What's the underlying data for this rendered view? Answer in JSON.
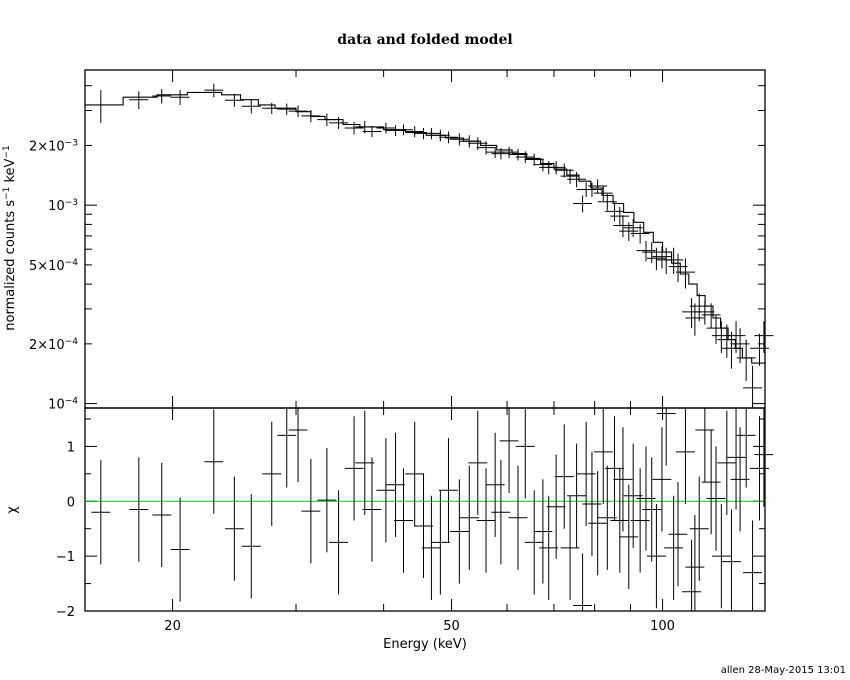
{
  "chart_data": [
    {
      "type": "scatter",
      "panel": "top",
      "title": "data and folded model",
      "xlabel": "",
      "ylabel": "normalized counts s^-1 keV^-1",
      "xscale": "log",
      "yscale": "log",
      "xlim": [
        15,
        140
      ],
      "ylim": [
        9.5e-05,
        0.0048
      ],
      "ytick_labels": [
        {
          "value": 0.0001,
          "mant": "10",
          "exp": "−4"
        },
        {
          "value": 0.0002,
          "mant": "2×10",
          "exp": "−4"
        },
        {
          "value": 0.0005,
          "mant": "5×10",
          "exp": "−4"
        },
        {
          "value": 0.001,
          "mant": "10",
          "exp": "−3"
        },
        {
          "value": 0.002,
          "mant": "2×10",
          "exp": "−3"
        }
      ],
      "ylabel_parts": {
        "text": "normalized counts s",
        "exp1": "−1",
        "mid": " keV",
        "exp2": "−1"
      },
      "series": [
        {
          "name": "",
          "points": [
            [
              15.8,
              0.0032,
              0.0006
            ],
            [
              17.9,
              0.0034,
              0.00035
            ],
            [
              19.3,
              0.00355,
              0.0003
            ],
            [
              20.5,
              0.0035,
              0.0003
            ],
            [
              22.9,
              0.0038,
              0.0003
            ],
            [
              24.5,
              0.00338,
              0.00025
            ],
            [
              25.9,
              0.00315,
              0.00025
            ],
            [
              27.7,
              0.00308,
              0.0002
            ],
            [
              29.1,
              0.00305,
              0.0002
            ],
            [
              30.2,
              0.00298,
              0.0002
            ],
            [
              31.5,
              0.00282,
              0.0002
            ],
            [
              33.2,
              0.0027,
              0.0002
            ],
            [
              34.5,
              0.0026,
              0.00018
            ],
            [
              36.3,
              0.00245,
              0.00018
            ],
            [
              37.6,
              0.00248,
              0.00018
            ],
            [
              38.5,
              0.00235,
              0.00015
            ],
            [
              40.3,
              0.00245,
              0.00015
            ],
            [
              41.6,
              0.00238,
              0.00015
            ],
            [
              42.7,
              0.0024,
              0.00015
            ],
            [
              44.3,
              0.00235,
              0.00015
            ],
            [
              45.6,
              0.0023,
              0.00015
            ],
            [
              46.8,
              0.0023,
              0.00015
            ],
            [
              48.2,
              0.00225,
              0.00015
            ],
            [
              49.5,
              0.0022,
              0.00015
            ],
            [
              51.3,
              0.00215,
              0.00015
            ],
            [
              53.0,
              0.0021,
              0.00015
            ],
            [
              54.5,
              0.00205,
              0.00015
            ],
            [
              56.0,
              0.00195,
              0.00015
            ],
            [
              57.7,
              0.00185,
              0.00012
            ],
            [
              58.8,
              0.00182,
              0.00012
            ],
            [
              60.4,
              0.00185,
              0.00012
            ],
            [
              62.2,
              0.0018,
              0.00012
            ],
            [
              63.7,
              0.00175,
              0.00012
            ],
            [
              65.6,
              0.0017,
              0.00012
            ],
            [
              67.5,
              0.0016,
              0.00012
            ],
            [
              68.8,
              0.00155,
              0.00012
            ],
            [
              70.5,
              0.00155,
              0.00012
            ],
            [
              72.4,
              0.0015,
              0.00012
            ],
            [
              73.8,
              0.0014,
              0.00012
            ],
            [
              75.4,
              0.00135,
              0.00012
            ],
            [
              76.9,
              0.00102,
              0.0001
            ],
            [
              77.8,
              0.0012,
              0.0001
            ],
            [
              79.3,
              0.0012,
              0.0001
            ],
            [
              80.8,
              0.00125,
              0.0001
            ],
            [
              82.3,
              0.00115,
              0.0001
            ],
            [
              83.4,
              0.00104,
              0.0001
            ],
            [
              85.4,
              0.00093,
              0.0001
            ],
            [
              86.9,
              0.00088,
              0.0001
            ],
            [
              87.8,
              0.00079,
              0.0001
            ],
            [
              89.5,
              0.00074,
              8e-05
            ],
            [
              90.8,
              0.00077,
              8e-05
            ],
            [
              92.9,
              0.00072,
              8e-05
            ],
            [
              94.7,
              0.00059,
              7e-05
            ],
            [
              96.5,
              0.00058,
              7e-05
            ],
            [
              98.0,
              0.00054,
              7e-05
            ],
            [
              99.8,
              0.00055,
              7e-05
            ],
            [
              101.2,
              0.00053,
              8e-05
            ],
            [
              103.7,
              0.00053,
              8e-05
            ],
            [
              105.2,
              0.00049,
              8e-05
            ],
            [
              107.8,
              0.00046,
              8e-05
            ],
            [
              110.0,
              0.00029,
              5e-05
            ],
            [
              111.2,
              0.00027,
              5e-05
            ],
            [
              112.8,
              0.00031,
              5e-05
            ],
            [
              114.9,
              0.00029,
              4e-05
            ],
            [
              117.3,
              0.00028,
              4e-05
            ],
            [
              119.2,
              0.00024,
              4e-05
            ],
            [
              121.3,
              0.00022,
              4e-05
            ],
            [
              123.5,
              0.00021,
              4e-05
            ],
            [
              125.4,
              0.00019,
              4e-05
            ],
            [
              127.3,
              0.00022,
              4e-05
            ],
            [
              129.0,
              0.0002,
              4e-05
            ],
            [
              131.6,
              0.00017,
              4e-05
            ],
            [
              134.4,
              0.00012,
              3.5e-05
            ],
            [
              137.5,
              0.00019,
              3.5e-05
            ],
            [
              139.5,
              0.00022,
              4e-05
            ]
          ],
          "bin_halfwidth_log": 0.0135
        }
      ],
      "model": [
        [
          15.0,
          0.0032
        ],
        [
          17.0,
          0.0032
        ],
        [
          17.0,
          0.0035
        ],
        [
          19.0,
          0.0035
        ],
        [
          19.0,
          0.0036
        ],
        [
          21.0,
          0.0036
        ],
        [
          21.0,
          0.0037
        ],
        [
          23.5,
          0.0037
        ],
        [
          23.5,
          0.0036
        ],
        [
          25.0,
          0.0036
        ],
        [
          25.0,
          0.0034
        ],
        [
          26.5,
          0.0034
        ],
        [
          26.5,
          0.0032
        ],
        [
          28.0,
          0.0032
        ],
        [
          28.0,
          0.00308
        ],
        [
          30.0,
          0.00308
        ],
        [
          30.0,
          0.00296
        ],
        [
          31.5,
          0.00296
        ],
        [
          31.5,
          0.0028
        ],
        [
          33.0,
          0.0028
        ],
        [
          33.0,
          0.0027
        ],
        [
          35.0,
          0.0027
        ],
        [
          35.0,
          0.00255
        ],
        [
          37.0,
          0.00255
        ],
        [
          37.0,
          0.00248
        ],
        [
          40.0,
          0.00248
        ],
        [
          40.0,
          0.0024
        ],
        [
          43.0,
          0.0024
        ],
        [
          43.0,
          0.00232
        ],
        [
          46.0,
          0.00232
        ],
        [
          46.0,
          0.00225
        ],
        [
          49.0,
          0.00225
        ],
        [
          49.0,
          0.00218
        ],
        [
          52.0,
          0.00218
        ],
        [
          52.0,
          0.0021
        ],
        [
          55.0,
          0.0021
        ],
        [
          55.0,
          0.002
        ],
        [
          58.0,
          0.002
        ],
        [
          58.0,
          0.0019
        ],
        [
          61.0,
          0.0019
        ],
        [
          61.0,
          0.00182
        ],
        [
          64.0,
          0.00182
        ],
        [
          64.0,
          0.00172
        ],
        [
          67.0,
          0.00172
        ],
        [
          67.0,
          0.00162
        ],
        [
          70.0,
          0.00162
        ],
        [
          70.0,
          0.00152
        ],
        [
          73.0,
          0.00152
        ],
        [
          73.0,
          0.00142
        ],
        [
          76.0,
          0.00142
        ],
        [
          76.0,
          0.00132
        ],
        [
          79.0,
          0.00132
        ],
        [
          79.0,
          0.00122
        ],
        [
          82.0,
          0.00122
        ],
        [
          82.0,
          0.00112
        ],
        [
          85.0,
          0.00112
        ],
        [
          85.0,
          0.00102
        ],
        [
          88.0,
          0.00102
        ],
        [
          88.0,
          0.00092
        ],
        [
          91.0,
          0.00092
        ],
        [
          91.0,
          0.00082
        ],
        [
          94.0,
          0.00082
        ],
        [
          94.0,
          0.00073
        ],
        [
          97.0,
          0.00073
        ],
        [
          97.0,
          0.00065
        ],
        [
          100.0,
          0.00065
        ],
        [
          100.0,
          0.00058
        ],
        [
          103.0,
          0.00058
        ],
        [
          103.0,
          0.00051
        ],
        [
          106.0,
          0.00051
        ],
        [
          106.0,
          0.00045
        ],
        [
          109.0,
          0.00045
        ],
        [
          109.0,
          0.0004
        ],
        [
          112.0,
          0.0004
        ],
        [
          112.0,
          0.00035
        ],
        [
          115.0,
          0.00035
        ],
        [
          115.0,
          0.00031
        ],
        [
          118.0,
          0.00031
        ],
        [
          118.0,
          0.00027
        ],
        [
          121.0,
          0.00027
        ],
        [
          121.0,
          0.00024
        ],
        [
          124.0,
          0.00024
        ],
        [
          124.0,
          0.00021
        ],
        [
          127.0,
          0.00021
        ],
        [
          127.0,
          0.00019
        ],
        [
          130.0,
          0.00019
        ],
        [
          130.0,
          0.00017
        ],
        [
          134.0,
          0.00017
        ],
        [
          134.0,
          0.00016
        ],
        [
          140.0,
          0.00016
        ]
      ],
      "grid": false
    },
    {
      "type": "scatter",
      "panel": "bottom",
      "title": "",
      "xlabel": "Energy (keV)",
      "ylabel": "χ",
      "xscale": "log",
      "xlim": [
        15,
        140
      ],
      "ylim": [
        -2,
        1.7
      ],
      "yticks": [
        -2,
        -1,
        0,
        1
      ],
      "ytick_labels": [
        "−2",
        "−1",
        "0",
        "1"
      ],
      "xticks": [
        20,
        50,
        100
      ],
      "xtick_labels": [
        "20",
        "50",
        "100"
      ],
      "zero_line_color": "#00cc00",
      "series": [
        {
          "name": "",
          "points": [
            [
              15.8,
              -0.2
            ],
            [
              17.9,
              -0.15
            ],
            [
              19.3,
              -0.25
            ],
            [
              20.5,
              -0.88
            ],
            [
              22.9,
              0.72
            ],
            [
              24.5,
              -0.5
            ],
            [
              25.9,
              -0.82
            ],
            [
              27.7,
              0.5
            ],
            [
              29.1,
              1.2
            ],
            [
              30.2,
              1.3
            ],
            [
              31.5,
              -0.18
            ],
            [
              33.2,
              0.02
            ],
            [
              34.5,
              -0.75
            ],
            [
              36.3,
              0.6
            ],
            [
              37.6,
              0.7
            ],
            [
              38.5,
              -0.15
            ],
            [
              40.3,
              0.2
            ],
            [
              41.6,
              0.3
            ],
            [
              42.7,
              -0.35
            ],
            [
              44.3,
              0.5
            ],
            [
              45.6,
              -0.45
            ],
            [
              46.8,
              -0.85
            ],
            [
              48.2,
              -0.75
            ],
            [
              49.5,
              0.2
            ],
            [
              51.3,
              -0.55
            ],
            [
              53.0,
              -0.3
            ],
            [
              54.5,
              0.7
            ],
            [
              56.0,
              -0.35
            ],
            [
              57.7,
              0.3
            ],
            [
              58.8,
              -0.2
            ],
            [
              60.4,
              1.1
            ],
            [
              62.2,
              -0.3
            ],
            [
              63.7,
              1.0
            ],
            [
              65.6,
              -0.75
            ],
            [
              67.5,
              -0.55
            ],
            [
              68.8,
              -0.85
            ],
            [
              70.5,
              -0.1
            ],
            [
              72.4,
              0.45
            ],
            [
              73.8,
              -0.85
            ],
            [
              75.4,
              0.1
            ],
            [
              76.9,
              -1.9
            ],
            [
              77.8,
              0.5
            ],
            [
              79.3,
              -0.05
            ],
            [
              80.8,
              -0.4
            ],
            [
              82.3,
              0.9
            ],
            [
              83.4,
              -0.3
            ],
            [
              85.4,
              0.6
            ],
            [
              86.9,
              -0.35
            ],
            [
              87.8,
              0.4
            ],
            [
              89.5,
              -0.65
            ],
            [
              90.8,
              0.1
            ],
            [
              92.9,
              -0.35
            ],
            [
              94.7,
              0.05
            ],
            [
              96.5,
              -0.15
            ],
            [
              98.0,
              -1.0
            ],
            [
              99.8,
              0.4
            ],
            [
              101.2,
              1.6
            ],
            [
              103.7,
              -0.85
            ],
            [
              105.2,
              -0.6
            ],
            [
              107.8,
              0.9
            ],
            [
              110.0,
              -1.65
            ],
            [
              111.2,
              -1.2
            ],
            [
              112.8,
              -0.5
            ],
            [
              114.9,
              1.3
            ],
            [
              117.3,
              0.35
            ],
            [
              119.2,
              0.05
            ],
            [
              121.3,
              -1.0
            ],
            [
              123.5,
              0.7
            ],
            [
              125.4,
              -1.1
            ],
            [
              127.3,
              0.8
            ],
            [
              129.0,
              0.4
            ],
            [
              131.6,
              1.2
            ],
            [
              134.4,
              -1.3
            ],
            [
              137.5,
              0.6
            ],
            [
              139.5,
              0.85
            ]
          ],
          "err": 0.95,
          "bin_halfwidth_log": 0.0135
        }
      ],
      "grid": false
    }
  ],
  "footer": {
    "stamp": "allen 28-May-2015 13:01"
  }
}
